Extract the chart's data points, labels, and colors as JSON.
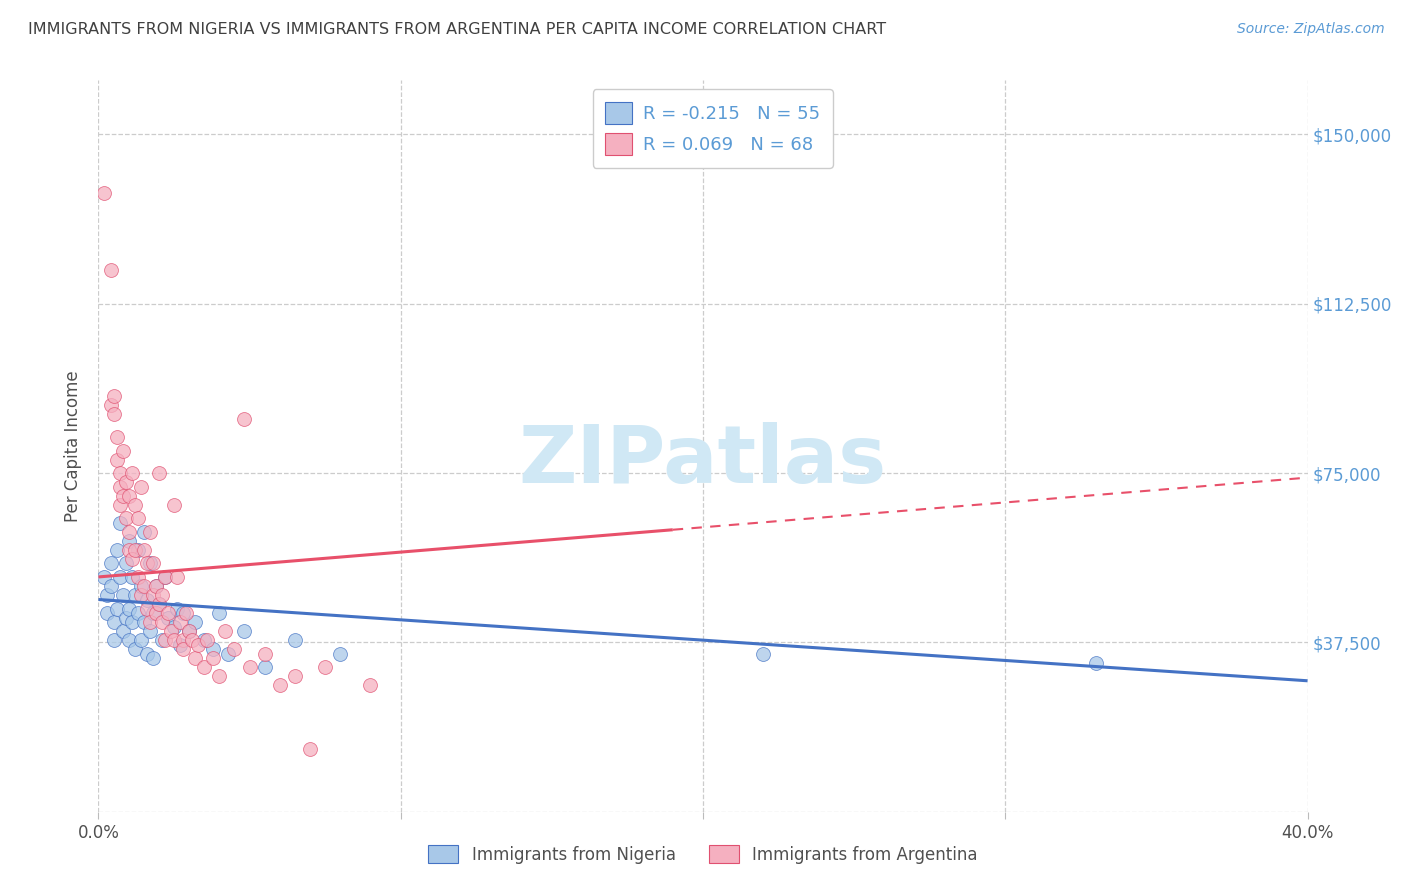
{
  "title": "IMMIGRANTS FROM NIGERIA VS IMMIGRANTS FROM ARGENTINA PER CAPITA INCOME CORRELATION CHART",
  "source": "Source: ZipAtlas.com",
  "ylabel": "Per Capita Income",
  "xlim": [
    0.0,
    0.4
  ],
  "ylim": [
    0,
    162000
  ],
  "yticks": [
    0,
    37500,
    75000,
    112500,
    150000
  ],
  "ytick_labels": [
    "",
    "$37,500",
    "$75,000",
    "$112,500",
    "$150,000"
  ],
  "nigeria_color": "#a8c8e8",
  "argentina_color": "#f5b0c0",
  "nigeria_edge_color": "#4472c4",
  "argentina_edge_color": "#e05070",
  "nigeria_line_color": "#4472c4",
  "argentina_line_color": "#e8506a",
  "background_color": "#ffffff",
  "grid_color": "#cccccc",
  "title_color": "#404040",
  "right_tick_color": "#5b9bd5",
  "watermark_color": "#d0e8f5",
  "watermark": "ZIPatlas",
  "nigeria_R": -0.215,
  "nigeria_N": 55,
  "argentina_R": 0.069,
  "argentina_N": 68,
  "nigeria_line_x0": 0.0,
  "nigeria_line_y0": 47000,
  "nigeria_line_x1": 0.4,
  "nigeria_line_y1": 29000,
  "argentina_line_x0": 0.0,
  "argentina_line_y0": 52000,
  "argentina_line_x1": 0.4,
  "argentina_line_y1": 74000,
  "nigeria_scatter": [
    [
      0.002,
      52000
    ],
    [
      0.003,
      48000
    ],
    [
      0.003,
      44000
    ],
    [
      0.004,
      55000
    ],
    [
      0.004,
      50000
    ],
    [
      0.005,
      42000
    ],
    [
      0.005,
      38000
    ],
    [
      0.006,
      58000
    ],
    [
      0.006,
      45000
    ],
    [
      0.007,
      64000
    ],
    [
      0.007,
      52000
    ],
    [
      0.008,
      48000
    ],
    [
      0.008,
      40000
    ],
    [
      0.009,
      55000
    ],
    [
      0.009,
      43000
    ],
    [
      0.01,
      60000
    ],
    [
      0.01,
      45000
    ],
    [
      0.01,
      38000
    ],
    [
      0.011,
      52000
    ],
    [
      0.011,
      42000
    ],
    [
      0.012,
      48000
    ],
    [
      0.012,
      36000
    ],
    [
      0.013,
      58000
    ],
    [
      0.013,
      44000
    ],
    [
      0.014,
      50000
    ],
    [
      0.014,
      38000
    ],
    [
      0.015,
      62000
    ],
    [
      0.015,
      42000
    ],
    [
      0.016,
      47000
    ],
    [
      0.016,
      35000
    ],
    [
      0.017,
      55000
    ],
    [
      0.017,
      40000
    ],
    [
      0.018,
      44000
    ],
    [
      0.018,
      34000
    ],
    [
      0.019,
      50000
    ],
    [
      0.02,
      46000
    ],
    [
      0.021,
      38000
    ],
    [
      0.022,
      52000
    ],
    [
      0.023,
      43000
    ],
    [
      0.025,
      41000
    ],
    [
      0.026,
      45000
    ],
    [
      0.027,
      37000
    ],
    [
      0.028,
      44000
    ],
    [
      0.03,
      40000
    ],
    [
      0.032,
      42000
    ],
    [
      0.035,
      38000
    ],
    [
      0.038,
      36000
    ],
    [
      0.04,
      44000
    ],
    [
      0.043,
      35000
    ],
    [
      0.048,
      40000
    ],
    [
      0.055,
      32000
    ],
    [
      0.065,
      38000
    ],
    [
      0.08,
      35000
    ],
    [
      0.22,
      35000
    ],
    [
      0.33,
      33000
    ]
  ],
  "argentina_scatter": [
    [
      0.002,
      137000
    ],
    [
      0.004,
      120000
    ],
    [
      0.004,
      90000
    ],
    [
      0.005,
      92000
    ],
    [
      0.005,
      88000
    ],
    [
      0.006,
      83000
    ],
    [
      0.006,
      78000
    ],
    [
      0.007,
      75000
    ],
    [
      0.007,
      72000
    ],
    [
      0.007,
      68000
    ],
    [
      0.008,
      80000
    ],
    [
      0.008,
      70000
    ],
    [
      0.009,
      65000
    ],
    [
      0.009,
      73000
    ],
    [
      0.01,
      62000
    ],
    [
      0.01,
      70000
    ],
    [
      0.01,
      58000
    ],
    [
      0.011,
      56000
    ],
    [
      0.011,
      75000
    ],
    [
      0.012,
      68000
    ],
    [
      0.012,
      58000
    ],
    [
      0.013,
      52000
    ],
    [
      0.013,
      65000
    ],
    [
      0.014,
      72000
    ],
    [
      0.014,
      48000
    ],
    [
      0.015,
      58000
    ],
    [
      0.015,
      50000
    ],
    [
      0.016,
      45000
    ],
    [
      0.016,
      55000
    ],
    [
      0.017,
      42000
    ],
    [
      0.017,
      62000
    ],
    [
      0.018,
      48000
    ],
    [
      0.018,
      55000
    ],
    [
      0.019,
      44000
    ],
    [
      0.019,
      50000
    ],
    [
      0.02,
      75000
    ],
    [
      0.02,
      46000
    ],
    [
      0.021,
      42000
    ],
    [
      0.021,
      48000
    ],
    [
      0.022,
      38000
    ],
    [
      0.022,
      52000
    ],
    [
      0.023,
      44000
    ],
    [
      0.024,
      40000
    ],
    [
      0.025,
      68000
    ],
    [
      0.025,
      38000
    ],
    [
      0.026,
      52000
    ],
    [
      0.027,
      42000
    ],
    [
      0.028,
      38000
    ],
    [
      0.028,
      36000
    ],
    [
      0.029,
      44000
    ],
    [
      0.03,
      40000
    ],
    [
      0.031,
      38000
    ],
    [
      0.032,
      34000
    ],
    [
      0.033,
      37000
    ],
    [
      0.035,
      32000
    ],
    [
      0.036,
      38000
    ],
    [
      0.038,
      34000
    ],
    [
      0.04,
      30000
    ],
    [
      0.042,
      40000
    ],
    [
      0.045,
      36000
    ],
    [
      0.048,
      87000
    ],
    [
      0.05,
      32000
    ],
    [
      0.055,
      35000
    ],
    [
      0.06,
      28000
    ],
    [
      0.065,
      30000
    ],
    [
      0.07,
      14000
    ],
    [
      0.075,
      32000
    ],
    [
      0.09,
      28000
    ]
  ]
}
